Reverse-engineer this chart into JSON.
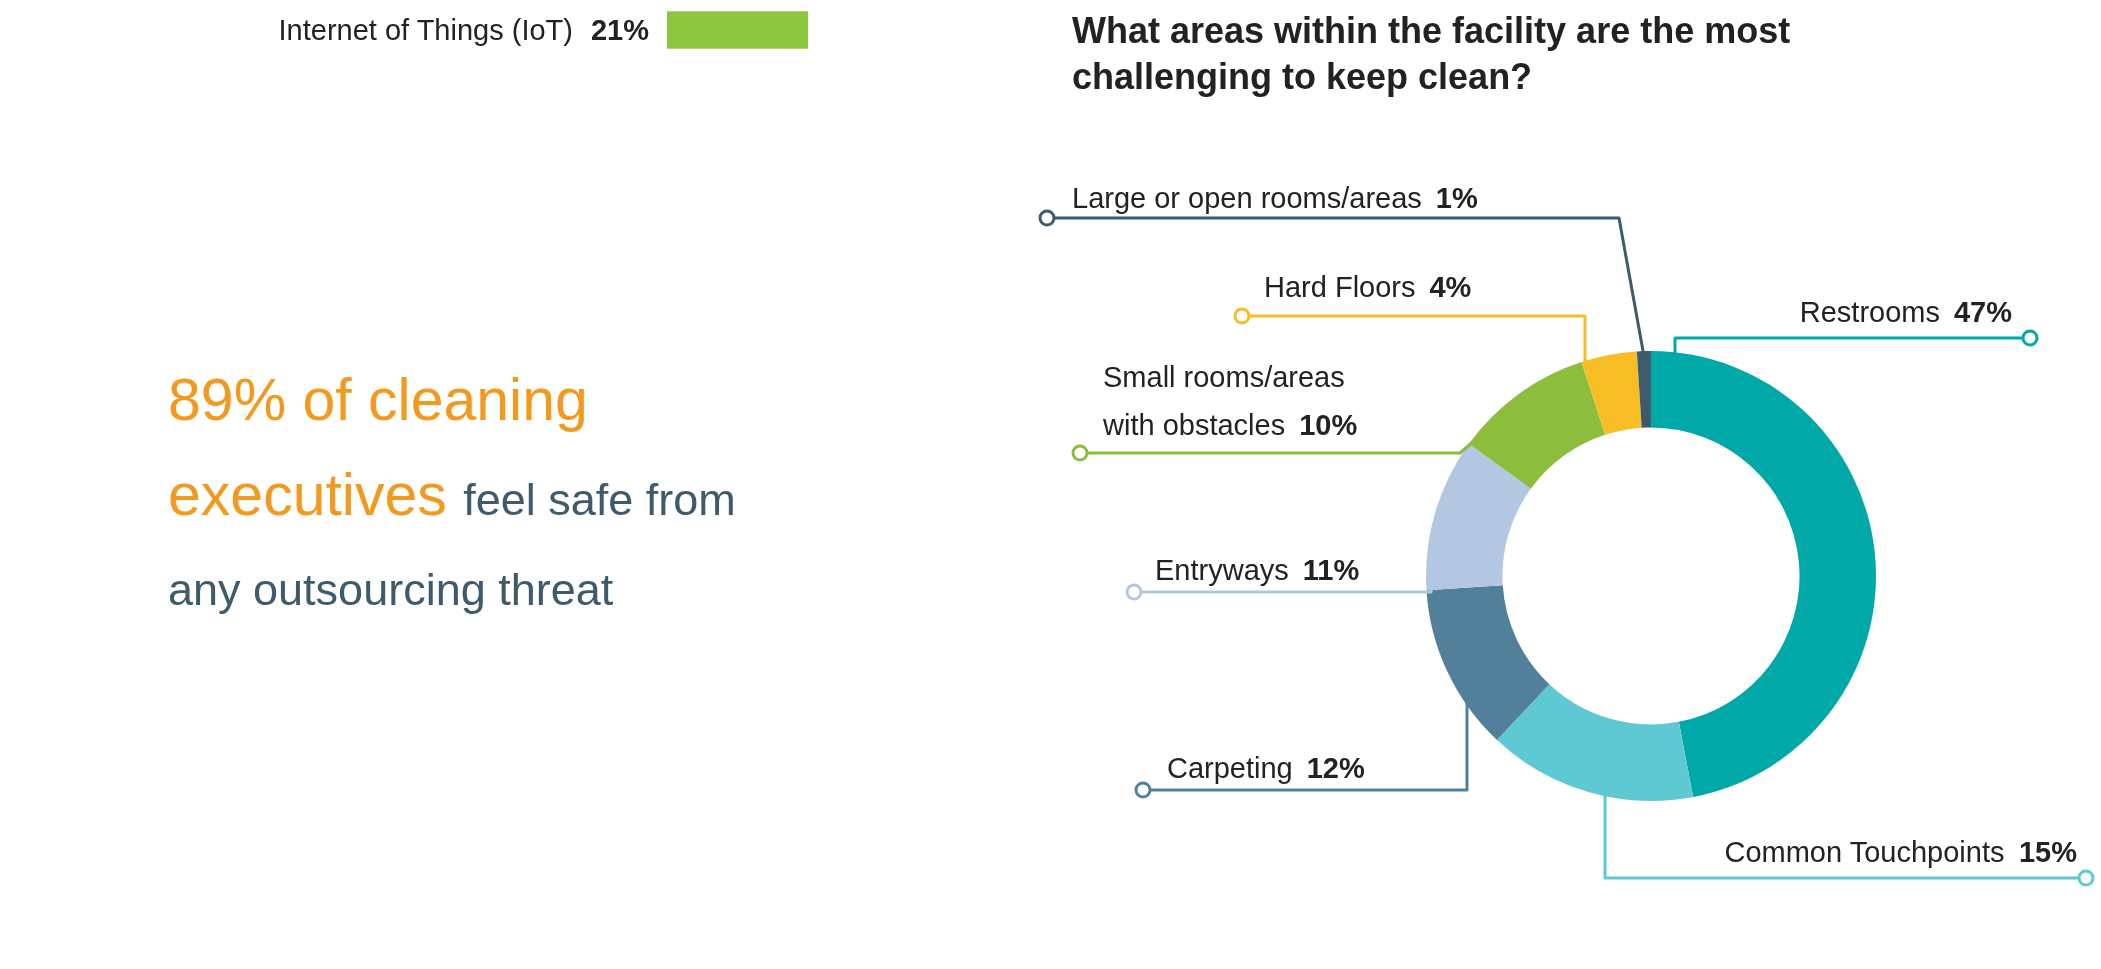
{
  "chart_data": [
    {
      "type": "bar",
      "orientation": "horizontal",
      "categories": [
        "Internet of Things (IoT)"
      ],
      "values": [
        21
      ],
      "value_labels": [
        "21%"
      ],
      "color": "#8dc63f"
    },
    {
      "type": "other",
      "annotations": [
        "89% of cleaning executives",
        "feel safe from any outsourcing threat"
      ]
    },
    {
      "type": "donut",
      "title": "What areas within the facility are the most challenging to keep clean?",
      "categories": [
        "Restrooms",
        "Common Touchpoints",
        "Carpeting",
        "Entryways",
        "Small rooms/areas with obstacles",
        "Hard Floors",
        "Large or open rooms/areas"
      ],
      "values": [
        47,
        15,
        12,
        11,
        10,
        4,
        1
      ],
      "colors": [
        "#00a9a8",
        "#5fc9d3",
        "#52809b",
        "#b3c7e2",
        "#8dbd3c",
        "#f7bd25",
        "#3e5a6d"
      ],
      "value_labels": [
        "47%",
        "15%",
        "12%",
        "11%",
        "10%",
        "4%",
        "1%"
      ]
    }
  ]
}
